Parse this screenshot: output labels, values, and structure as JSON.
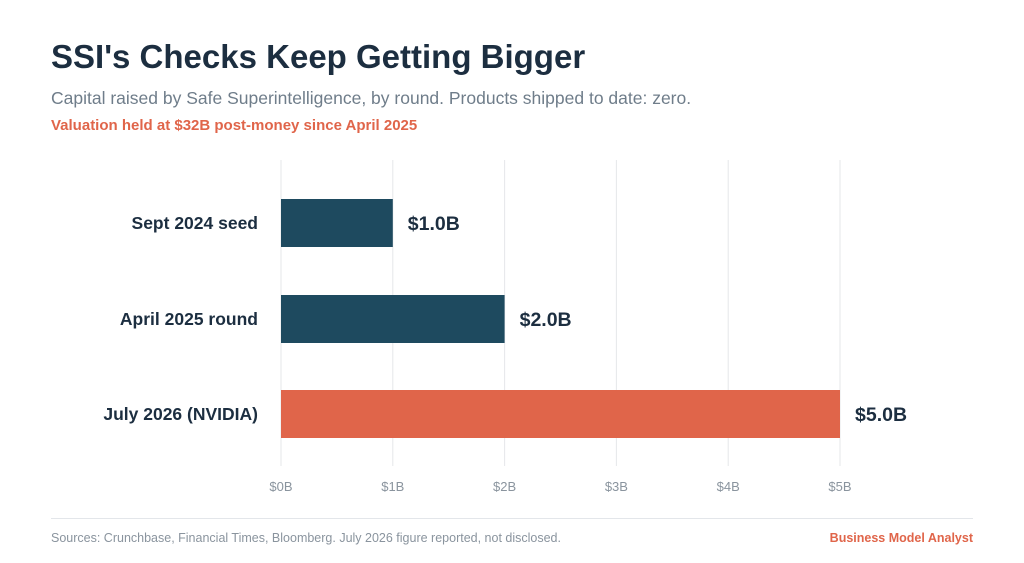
{
  "header": {
    "title": "SSI's Checks Keep Getting Bigger",
    "subtitle": "Capital raised by Safe Superintelligence, by round. Products shipped to date: zero.",
    "note": "Valuation held at $32B post-money since April 2025"
  },
  "footer": {
    "source": "Sources: Crunchbase, Financial Times, Bloomberg. July 2026 figure reported, not disclosed.",
    "brand": "Business Model Analyst"
  },
  "colors": {
    "title": "#1c2e40",
    "primary_bar": "#1e4a5f",
    "highlight_bar": "#e0654a",
    "grid": "#e5e7ea",
    "tick": "#8a949e",
    "label": "#1c2e40"
  },
  "chart_data": {
    "type": "bar",
    "orientation": "horizontal",
    "categories": [
      "Sept 2024 seed",
      "April 2025 round",
      "July 2026 (NVIDIA)"
    ],
    "values": [
      1.0,
      2.0,
      5.0
    ],
    "value_labels": [
      "$1.0B",
      "$2.0B",
      "$5.0B"
    ],
    "highlight": [
      false,
      false,
      true
    ],
    "unit": "USD billions",
    "xlim": [
      0,
      5
    ],
    "xticks": [
      0,
      1,
      2,
      3,
      4,
      5
    ],
    "xtick_labels": [
      "$0B",
      "$1B",
      "$2B",
      "$3B",
      "$4B",
      "$5B"
    ],
    "grid": true,
    "legend": "none"
  }
}
